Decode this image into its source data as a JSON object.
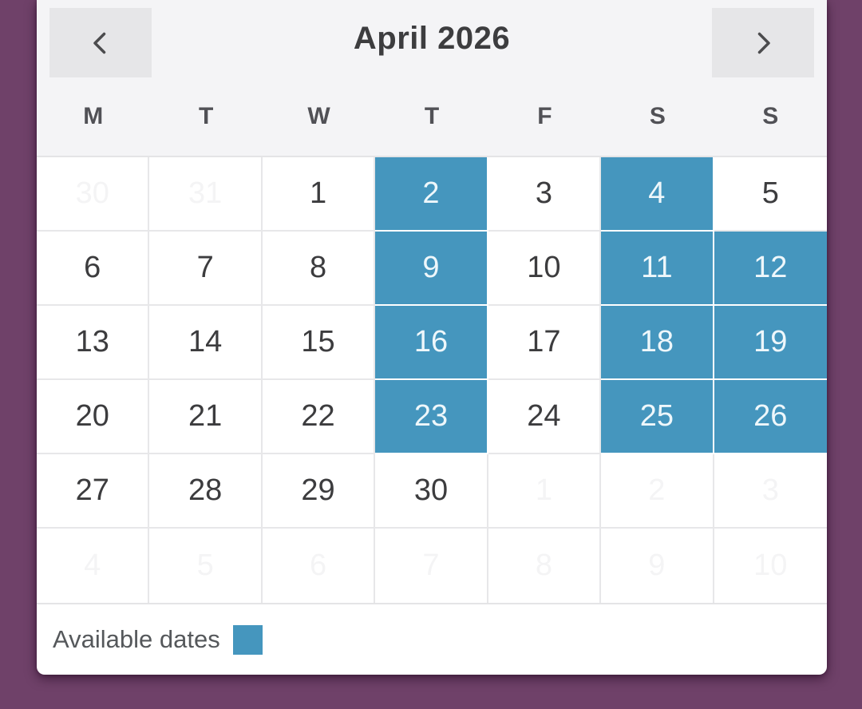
{
  "calendar": {
    "title": "April 2026",
    "nav": {
      "prev_icon": "chevron-left",
      "next_icon": "chevron-right"
    },
    "day_headers": [
      "M",
      "T",
      "W",
      "T",
      "F",
      "S",
      "S"
    ],
    "weeks": [
      [
        {
          "day": "30",
          "month": "prev",
          "available": false
        },
        {
          "day": "31",
          "month": "prev",
          "available": false
        },
        {
          "day": "1",
          "month": "current",
          "available": false
        },
        {
          "day": "2",
          "month": "current",
          "available": true
        },
        {
          "day": "3",
          "month": "current",
          "available": false
        },
        {
          "day": "4",
          "month": "current",
          "available": true
        },
        {
          "day": "5",
          "month": "current",
          "available": false
        }
      ],
      [
        {
          "day": "6",
          "month": "current",
          "available": false
        },
        {
          "day": "7",
          "month": "current",
          "available": false
        },
        {
          "day": "8",
          "month": "current",
          "available": false
        },
        {
          "day": "9",
          "month": "current",
          "available": true
        },
        {
          "day": "10",
          "month": "current",
          "available": false
        },
        {
          "day": "11",
          "month": "current",
          "available": true
        },
        {
          "day": "12",
          "month": "current",
          "available": true
        }
      ],
      [
        {
          "day": "13",
          "month": "current",
          "available": false
        },
        {
          "day": "14",
          "month": "current",
          "available": false
        },
        {
          "day": "15",
          "month": "current",
          "available": false
        },
        {
          "day": "16",
          "month": "current",
          "available": true
        },
        {
          "day": "17",
          "month": "current",
          "available": false
        },
        {
          "day": "18",
          "month": "current",
          "available": true
        },
        {
          "day": "19",
          "month": "current",
          "available": true
        }
      ],
      [
        {
          "day": "20",
          "month": "current",
          "available": false
        },
        {
          "day": "21",
          "month": "current",
          "available": false
        },
        {
          "day": "22",
          "month": "current",
          "available": false
        },
        {
          "day": "23",
          "month": "current",
          "available": true
        },
        {
          "day": "24",
          "month": "current",
          "available": false
        },
        {
          "day": "25",
          "month": "current",
          "available": true
        },
        {
          "day": "26",
          "month": "current",
          "available": true
        }
      ],
      [
        {
          "day": "27",
          "month": "current",
          "available": false
        },
        {
          "day": "28",
          "month": "current",
          "available": false
        },
        {
          "day": "29",
          "month": "current",
          "available": false
        },
        {
          "day": "30",
          "month": "current",
          "available": false
        },
        {
          "day": "1",
          "month": "next",
          "available": false
        },
        {
          "day": "2",
          "month": "next",
          "available": false
        },
        {
          "day": "3",
          "month": "next",
          "available": false
        }
      ],
      [
        {
          "day": "4",
          "month": "next",
          "available": false
        },
        {
          "day": "5",
          "month": "next",
          "available": false
        },
        {
          "day": "6",
          "month": "next",
          "available": false
        },
        {
          "day": "7",
          "month": "next",
          "available": false
        },
        {
          "day": "8",
          "month": "next",
          "available": false
        },
        {
          "day": "9",
          "month": "next",
          "available": false
        },
        {
          "day": "10",
          "month": "next",
          "available": false
        }
      ]
    ],
    "legend": {
      "label": "Available dates"
    },
    "colors": {
      "available": "#4596be",
      "background": "#6f4169",
      "header_background": "#f4f4f6"
    }
  }
}
